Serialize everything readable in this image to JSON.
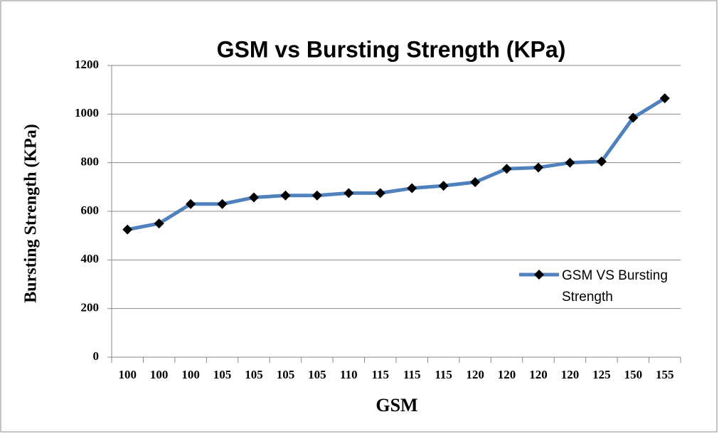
{
  "chart_data": {
    "type": "line",
    "title": "GSM vs Bursting Strength (KPa)",
    "x_label": "GSM",
    "y_label": "Bursting Strength (KPa)",
    "categories": [
      "100",
      "100",
      "100",
      "105",
      "105",
      "105",
      "105",
      "110",
      "115",
      "115",
      "115",
      "120",
      "120",
      "120",
      "120",
      "125",
      "150",
      "155"
    ],
    "series": [
      {
        "name": "GSM VS Bursting Strength",
        "color": "#4f81bd",
        "values": [
          525,
          550,
          630,
          630,
          657,
          665,
          665,
          675,
          675,
          695,
          705,
          720,
          775,
          780,
          800,
          805,
          985,
          1065
        ]
      }
    ],
    "ylim": [
      0,
      1200
    ],
    "yticks": [
      0,
      200,
      400,
      600,
      800,
      1000,
      1200
    ],
    "grid": true,
    "legend": "right"
  }
}
